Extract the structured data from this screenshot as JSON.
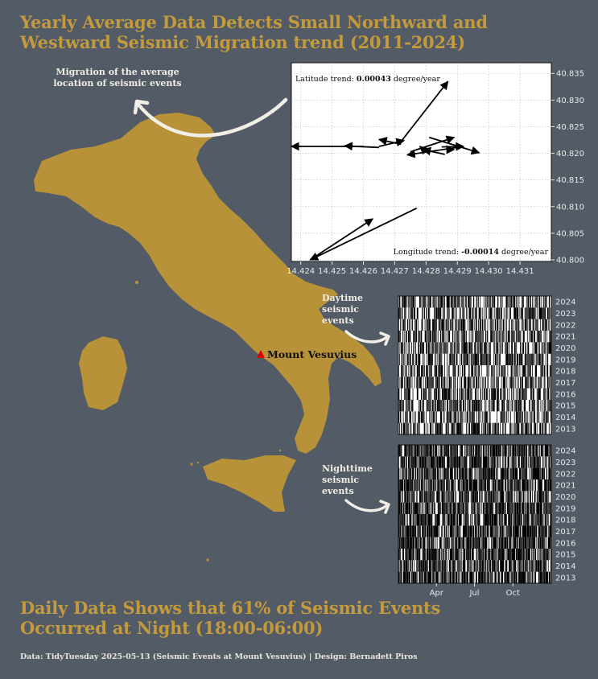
{
  "header": {
    "title_line1": "Yearly Average Data Detects Small Northward and",
    "title_line2": "Westward Seismic Migration trend (2011-2024)"
  },
  "footer": {
    "title_line1": "Daily Data Shows that 61% of Seismic Events",
    "title_line2": "Occurred at Night (18:00-06:00)",
    "caption": "Data: TidyTuesday 2025-05-13 (Seismic Events at Mount Vesuvius) | Design: Bernadett Piros"
  },
  "annotations": {
    "migration_line1": "Migration of the average",
    "migration_line2": "location of seismic events",
    "daytime_line1": "Daytime",
    "daytime_line2": "seismic",
    "daytime_line3": "events",
    "nighttime_line1": "Nighttime",
    "nighttime_line2": "seismic",
    "nighttime_line3": "events"
  },
  "map": {
    "country_color": "#b89239",
    "background_color": "#535b66",
    "marker_label": "Mount Vesuvius",
    "marker_color": "#e00000"
  },
  "chart_data": [
    {
      "type": "scatter",
      "subtype": "quiver",
      "xlim": [
        14.4237,
        14.432
      ],
      "ylim": [
        40.7997,
        40.837
      ],
      "x_ticks": [
        14.424,
        14.425,
        14.426,
        14.427,
        14.428,
        14.429,
        14.43,
        14.431
      ],
      "y_ticks": [
        40.8,
        40.805,
        40.81,
        40.815,
        40.82,
        40.825,
        40.83,
        40.835
      ],
      "x_tick_labels": [
        "14.424",
        "14.425",
        "14.426",
        "14.427",
        "14.428",
        "14.429",
        "14.430",
        "14.431"
      ],
      "y_tick_labels": [
        "40.800",
        "40.805",
        "40.810",
        "40.815",
        "40.820",
        "40.825",
        "40.830",
        "40.835"
      ],
      "grid": true,
      "latitude_trend": {
        "prefix": "Latitude trend:",
        "value": "0.00043",
        "unit": "degree/year"
      },
      "longitude_trend": {
        "prefix": "Longitude trend:",
        "value": "-0.00014",
        "unit": "degree/year"
      },
      "arrows": [
        {
          "x0": 14.4277,
          "y0": 40.8097,
          "x1": 14.4243,
          "y1": 40.8
        },
        {
          "x0": 14.4243,
          "y0": 40.8,
          "x1": 14.4263,
          "y1": 40.8077
        },
        {
          "x0": 14.4289,
          "y0": 40.8207,
          "x1": 14.4289,
          "y1": 40.8207
        },
        {
          "x0": 14.4285,
          "y0": 40.8212,
          "x1": 14.4292,
          "y1": 40.8213
        },
        {
          "x0": 14.428,
          "y0": 40.8203,
          "x1": 14.4278,
          "y1": 40.8213
        },
        {
          "x0": 14.426,
          "y0": 40.8213,
          "x1": 14.4237,
          "y1": 40.8213
        },
        {
          "x0": 14.4265,
          "y0": 40.8211,
          "x1": 14.4254,
          "y1": 40.8214
        },
        {
          "x0": 14.4265,
          "y0": 40.8213,
          "x1": 14.4273,
          "y1": 40.8224
        },
        {
          "x0": 14.4272,
          "y0": 40.8217,
          "x1": 14.4265,
          "y1": 40.8226
        },
        {
          "x0": 14.4275,
          "y0": 40.8203,
          "x1": 14.4289,
          "y1": 40.823
        },
        {
          "x0": 14.4272,
          "y0": 40.8222,
          "x1": 14.4287,
          "y1": 40.8335
        },
        {
          "x0": 14.4281,
          "y0": 40.823,
          "x1": 14.4297,
          "y1": 40.8201
        },
        {
          "x0": 14.4291,
          "y0": 40.8212,
          "x1": 14.4274,
          "y1": 40.8197
        },
        {
          "x0": 14.4286,
          "y0": 40.8198,
          "x1": 14.4279,
          "y1": 40.8207
        }
      ]
    },
    {
      "type": "heatmap",
      "subtype": "event-stripes",
      "panels": [
        "Daytime seismic events",
        "Nighttime seismic events"
      ],
      "years": [
        2013,
        2014,
        2015,
        2016,
        2017,
        2018,
        2019,
        2020,
        2021,
        2022,
        2023,
        2024
      ],
      "x_ticks": [
        "Apr",
        "Jul",
        "Oct"
      ],
      "x_tick_days": [
        91,
        182,
        274
      ],
      "days_in_year": 366,
      "color_event": "#000000",
      "color_none": "#ffffff",
      "night_share": "61%"
    }
  ]
}
